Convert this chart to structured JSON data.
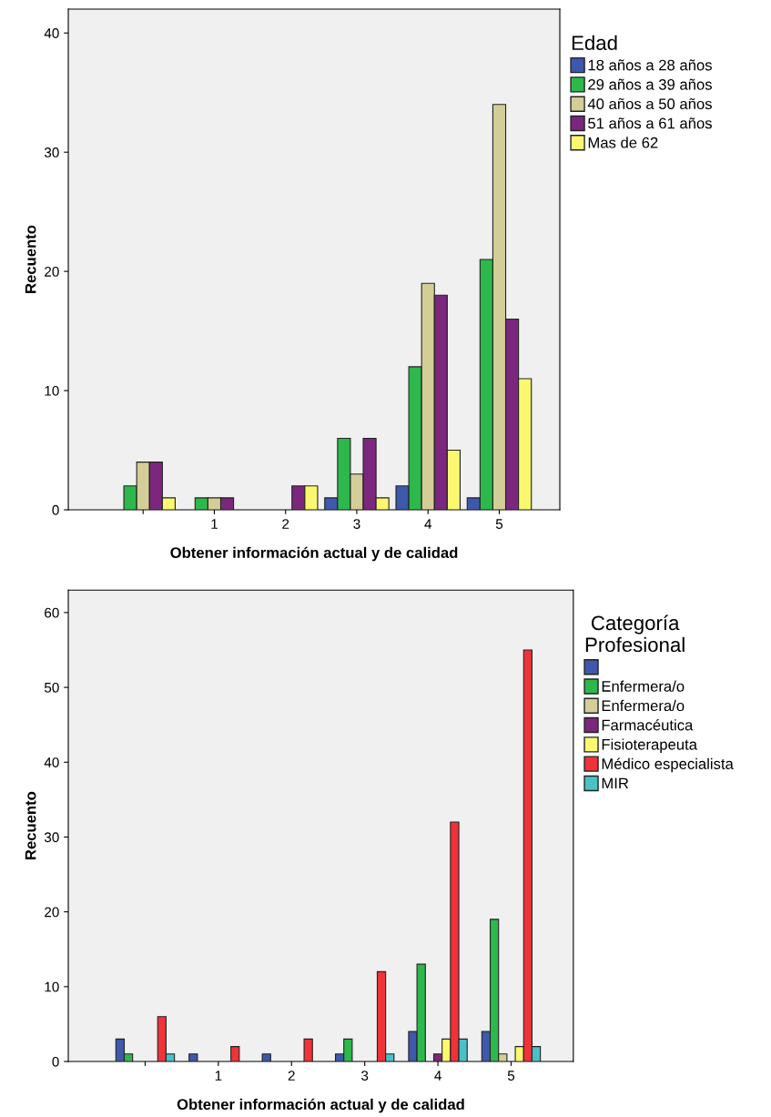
{
  "chart_data": [
    {
      "type": "bar",
      "xlabel": "Obtener información actual y de calidad",
      "ylabel": "Recuento",
      "legend_title": "Edad",
      "legend": "right",
      "grid": false,
      "categories": [
        null,
        "1",
        "2",
        "3",
        "4",
        "5"
      ],
      "ylim": [
        0,
        42
      ],
      "yticks": [
        0,
        10,
        20,
        30,
        40
      ],
      "series": [
        {
          "name": "18 años a 28 años",
          "color": "#3e58ac",
          "values": [
            null,
            null,
            null,
            1,
            2,
            1
          ]
        },
        {
          "name": "29 años a 39 años",
          "color": "#2db84c",
          "values": [
            2,
            1,
            null,
            6,
            12,
            21
          ]
        },
        {
          "name": "40 años a 50 años",
          "color": "#d3ce97",
          "values": [
            4,
            1,
            null,
            3,
            19,
            34
          ]
        },
        {
          "name": "51 años a 61 años",
          "color": "#7b277d",
          "values": [
            4,
            1,
            2,
            6,
            18,
            16
          ]
        },
        {
          "name": "Mas de 62",
          "color": "#fbf870",
          "values": [
            1,
            null,
            2,
            1,
            5,
            11
          ]
        }
      ]
    },
    {
      "type": "bar",
      "xlabel": "Obtener información actual y de calidad",
      "ylabel": "Recuento",
      "legend_title": "Categoría Profesional",
      "legend": "right",
      "grid": false,
      "categories": [
        null,
        "1",
        "2",
        "3",
        "4",
        "5"
      ],
      "ylim": [
        0,
        63
      ],
      "yticks": [
        0,
        10,
        20,
        30,
        40,
        50,
        60
      ],
      "series": [
        {
          "color": "#3e58ac",
          "values": [
            3,
            1,
            1,
            1,
            4,
            4
          ]
        },
        {
          "name": "Enfermera/o",
          "color": "#2db84c",
          "values": [
            1,
            null,
            null,
            3,
            13,
            19
          ]
        },
        {
          "name": "Enfermera/o",
          "color": "#d3ce97",
          "values": [
            null,
            null,
            null,
            null,
            null,
            1
          ]
        },
        {
          "name": "Farmacéutica",
          "color": "#7b277d",
          "values": [
            null,
            null,
            null,
            null,
            1,
            null
          ]
        },
        {
          "name": "Fisioterapeuta",
          "color": "#fbf870",
          "values": [
            null,
            null,
            null,
            null,
            3,
            2
          ]
        },
        {
          "name": "Médico especialista",
          "color": "#ef3338",
          "values": [
            6,
            2,
            3,
            12,
            32,
            55
          ]
        },
        {
          "name": "MIR",
          "color": "#49c1c6",
          "values": [
            1,
            null,
            null,
            1,
            3,
            2
          ]
        }
      ]
    }
  ]
}
